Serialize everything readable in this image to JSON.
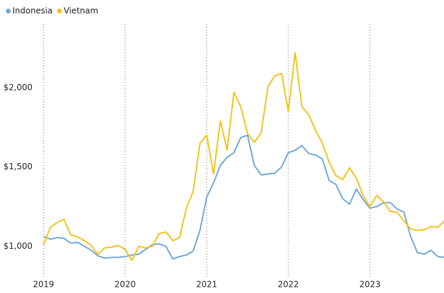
{
  "chart_data": {
    "type": "line",
    "categories": [
      "2019",
      null,
      null,
      null,
      null,
      null,
      null,
      null,
      null,
      null,
      null,
      null,
      "2020",
      null,
      null,
      null,
      null,
      null,
      null,
      null,
      null,
      null,
      null,
      null,
      "2021",
      null,
      null,
      null,
      null,
      null,
      null,
      null,
      null,
      null,
      null,
      null,
      "2022",
      null,
      null,
      null,
      null,
      null,
      null,
      null,
      null,
      null,
      null,
      null,
      "2023",
      null,
      null,
      null,
      null,
      null,
      null,
      null,
      null,
      null,
      null,
      null
    ],
    "series": [
      {
        "name": "Indonesia",
        "color": "#6fa8d6",
        "values": [
          1060,
          1045,
          1055,
          1050,
          1020,
          1025,
          1000,
          975,
          940,
          925,
          930,
          930,
          935,
          945,
          950,
          980,
          1010,
          1015,
          1000,
          920,
          935,
          945,
          970,
          1100,
          1310,
          1400,
          1510,
          1560,
          1590,
          1685,
          1700,
          1510,
          1450,
          1455,
          1460,
          1500,
          1590,
          1605,
          1635,
          1585,
          1575,
          1550,
          1415,
          1390,
          1300,
          1265,
          1360,
          1295,
          1240,
          1250,
          1275,
          1275,
          1235,
          1215,
          1060,
          960,
          950,
          975,
          935,
          930
        ]
      },
      {
        "name": "Vietnam",
        "color": "#f5c318",
        "values": [
          1010,
          1120,
          1150,
          1170,
          1070,
          1060,
          1035,
          1005,
          950,
          990,
          995,
          1005,
          980,
          910,
          1000,
          990,
          1000,
          1080,
          1090,
          1035,
          1055,
          1240,
          1345,
          1650,
          1700,
          1455,
          1790,
          1605,
          1970,
          1880,
          1710,
          1655,
          1715,
          2005,
          2075,
          2090,
          1850,
          2220,
          1880,
          1830,
          1730,
          1650,
          1530,
          1445,
          1420,
          1495,
          1430,
          1320,
          1250,
          1320,
          1280,
          1220,
          1215,
          1160,
          1110,
          1100,
          1105,
          1125,
          1120,
          1160
        ]
      }
    ],
    "ylim": [
      810,
      2400
    ],
    "yticks": [
      {
        "value": 1000,
        "label": "$1,000"
      },
      {
        "value": 1500,
        "label": "$1,500"
      },
      {
        "value": 2000,
        "label": "$2,000"
      }
    ],
    "legend": "top-left"
  }
}
